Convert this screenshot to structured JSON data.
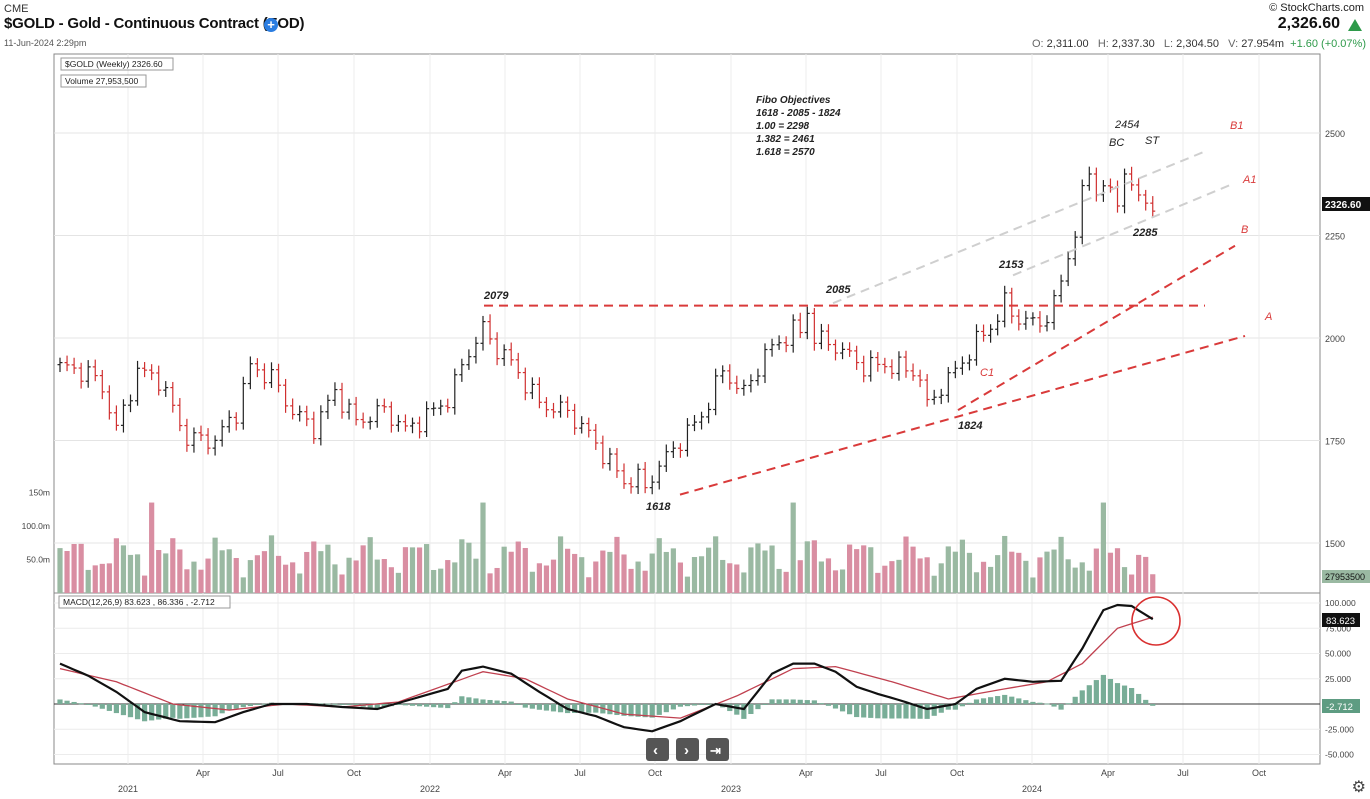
{
  "header": {
    "exchange": "CME",
    "title": "$GOLD - Gold - Continuous Contract (EOD)",
    "add_icon": "plus-circle-icon",
    "timestamp": "11-Jun-2024 2:29pm",
    "brand": "© StockCharts.com",
    "last_price": "2,326.60",
    "trend_icon": "triangle-up-icon",
    "open_label": "O:",
    "open": "2,311.00",
    "high_label": "H:",
    "high": "2,337.30",
    "low_label": "L:",
    "low": "2,304.50",
    "vol_label": "V:",
    "volume": "27.954m",
    "change": "+1.60 (+0.07%)"
  },
  "colors": {
    "up": "#222222",
    "down": "#d03030",
    "vol_up": "#9ab9a2",
    "vol_down": "#d98ea2",
    "signal": "#c0404f",
    "fib": "#d93a3a",
    "trend_grey": "#cfcfcf",
    "hist": "#78ad97"
  },
  "chart_data": [
    {
      "type": "ohlc",
      "title": "$GOLD (Weekly) 2326.60",
      "volume_label": "Volume 27,953,500",
      "ylim": [
        1400,
        2600
      ],
      "y_ticks": [
        2500,
        2250,
        2000,
        1750,
        1500
      ],
      "price_tag": "2326.60",
      "x_ticks": [
        "2021",
        "Apr",
        "Jul",
        "Oct",
        "2022",
        "Apr",
        "Jul",
        "Oct",
        "2023",
        "Apr",
        "Jul",
        "Oct",
        "2024",
        "Apr",
        "Jul",
        "Oct"
      ],
      "close_anchors": [
        [
          0,
          1930
        ],
        [
          4,
          1915
        ],
        [
          6,
          1880
        ],
        [
          8,
          1775
        ],
        [
          11,
          1920
        ],
        [
          14,
          1900
        ],
        [
          18,
          1755
        ],
        [
          22,
          1750
        ],
        [
          25,
          1820
        ],
        [
          27,
          1930
        ],
        [
          30,
          1905
        ],
        [
          33,
          1820
        ],
        [
          36,
          1780
        ],
        [
          39,
          1870
        ],
        [
          42,
          1795
        ],
        [
          46,
          1825
        ],
        [
          49,
          1775
        ],
        [
          52,
          1810
        ],
        [
          55,
          1850
        ],
        [
          58,
          1970
        ],
        [
          60,
          2010
        ],
        [
          64,
          1940
        ],
        [
          68,
          1840
        ],
        [
          72,
          1820
        ],
        [
          75,
          1765
        ],
        [
          80,
          1650
        ],
        [
          84,
          1665
        ],
        [
          87,
          1730
        ],
        [
          91,
          1810
        ],
        [
          94,
          1920
        ],
        [
          97,
          1865
        ],
        [
          100,
          1960
        ],
        [
          104,
          2020
        ],
        [
          107,
          2000
        ],
        [
          110,
          1980
        ],
        [
          114,
          1930
        ],
        [
          117,
          1935
        ],
        [
          121,
          1920
        ],
        [
          124,
          1860
        ],
        [
          127,
          1920
        ],
        [
          130,
          1990
        ],
        [
          134,
          2070
        ],
        [
          137,
          2040
        ],
        [
          139,
          2035
        ],
        [
          141,
          2080
        ],
        [
          143,
          2200
        ],
        [
          144,
          2260
        ],
        [
          145,
          2345
        ],
        [
          148,
          2370
        ],
        [
          150,
          2330
        ],
        [
          152,
          2355
        ],
        [
          155,
          2326
        ]
      ],
      "annotations": [
        {
          "text": "2079",
          "bold": true
        },
        {
          "text": "2085",
          "bold": true
        },
        {
          "text": "1618",
          "bold": true
        },
        {
          "text": "1824",
          "bold": true
        },
        {
          "text": "2153",
          "bold": true
        },
        {
          "text": "2454",
          "bold": false
        },
        {
          "text": "2285",
          "bold": true
        },
        {
          "text": "BC",
          "bold": false
        },
        {
          "text": "ST",
          "bold": false
        }
      ],
      "wave_labels": [
        "B1",
        "A1",
        "B",
        "A",
        "C1"
      ],
      "fibo_notes": [
        "Fibo Objectives",
        "1618 - 2085 - 1824",
        "1.00 = 2298",
        "1.382 = 2461",
        "1.618 = 2570"
      ]
    },
    {
      "type": "bar",
      "title": "Volume",
      "y_ticks": [
        "150m",
        "100.0m",
        "50.0m"
      ],
      "ylim": [
        0,
        170
      ],
      "volume_tag": "27953500"
    },
    {
      "type": "line",
      "title": "MACD(12,26,9) 83.623 , 86.336 , -2.712",
      "ylim": [
        -55,
        110
      ],
      "y_ticks": [
        100,
        75,
        50,
        25,
        0,
        -25,
        -50
      ],
      "y_tick_labels": [
        "100.000",
        "75.000",
        "50.000",
        "25.000",
        "",
        "-25.000",
        "-50.000"
      ],
      "series": [
        {
          "name": "",
          "x": [
            0,
            4,
            8,
            12,
            17,
            22,
            26,
            30,
            35,
            40,
            45,
            50,
            55,
            57,
            60,
            64,
            68,
            72,
            76,
            80,
            84,
            88,
            93,
            97,
            101,
            104,
            107,
            110,
            113,
            116,
            119,
            123,
            127,
            130,
            134,
            138,
            142,
            145,
            148,
            150,
            152,
            155
          ],
          "values": [
            40,
            28,
            12,
            -8,
            -17,
            -18,
            -8,
            0,
            0,
            -3,
            -5,
            5,
            15,
            33,
            37,
            30,
            12,
            -5,
            -12,
            -23,
            -27,
            -17,
            0,
            -5,
            30,
            40,
            40,
            32,
            17,
            10,
            4,
            -5,
            0,
            15,
            25,
            22,
            23,
            55,
            93,
            98,
            97,
            84
          ]
        },
        {
          "name": "",
          "x": [
            0,
            8,
            16,
            24,
            32,
            40,
            48,
            56,
            60,
            66,
            72,
            80,
            88,
            96,
            104,
            110,
            118,
            126,
            134,
            140,
            145,
            150,
            155
          ],
          "values": [
            35,
            22,
            0,
            -6,
            0,
            -3,
            2,
            22,
            32,
            25,
            5,
            -10,
            -14,
            8,
            35,
            37,
            22,
            5,
            15,
            22,
            40,
            75,
            86
          ]
        }
      ],
      "histogram_tag": "-2.712",
      "macd_tag": "83.623"
    }
  ],
  "nav": {
    "prev_icon": "chevron-left-icon",
    "next_icon": "chevron-right-icon",
    "end_icon": "skip-end-icon",
    "settings_icon": "gear-icon"
  }
}
